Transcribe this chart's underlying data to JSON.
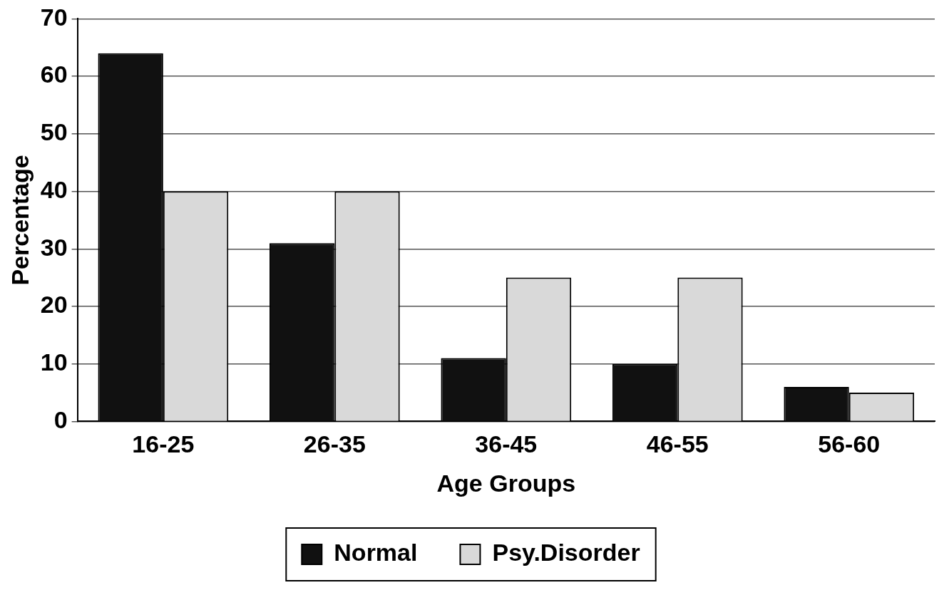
{
  "chart_data": {
    "type": "bar",
    "xlabel": "Age Groups",
    "ylabel": "Percentage",
    "categories": [
      "16-25",
      "26-35",
      "36-45",
      "46-55",
      "56-60"
    ],
    "series": [
      {
        "name": "Normal",
        "color": "#111111",
        "values": [
          64,
          31,
          11,
          10,
          6
        ]
      },
      {
        "name": "Psy.Disorder",
        "color": "#d9d9d9",
        "values": [
          40,
          40,
          25,
          25,
          5
        ]
      }
    ],
    "ylim": [
      0,
      70
    ],
    "yticks": [
      0,
      10,
      20,
      30,
      40,
      50,
      60,
      70
    ],
    "grid": "y",
    "legend": "bottom"
  }
}
